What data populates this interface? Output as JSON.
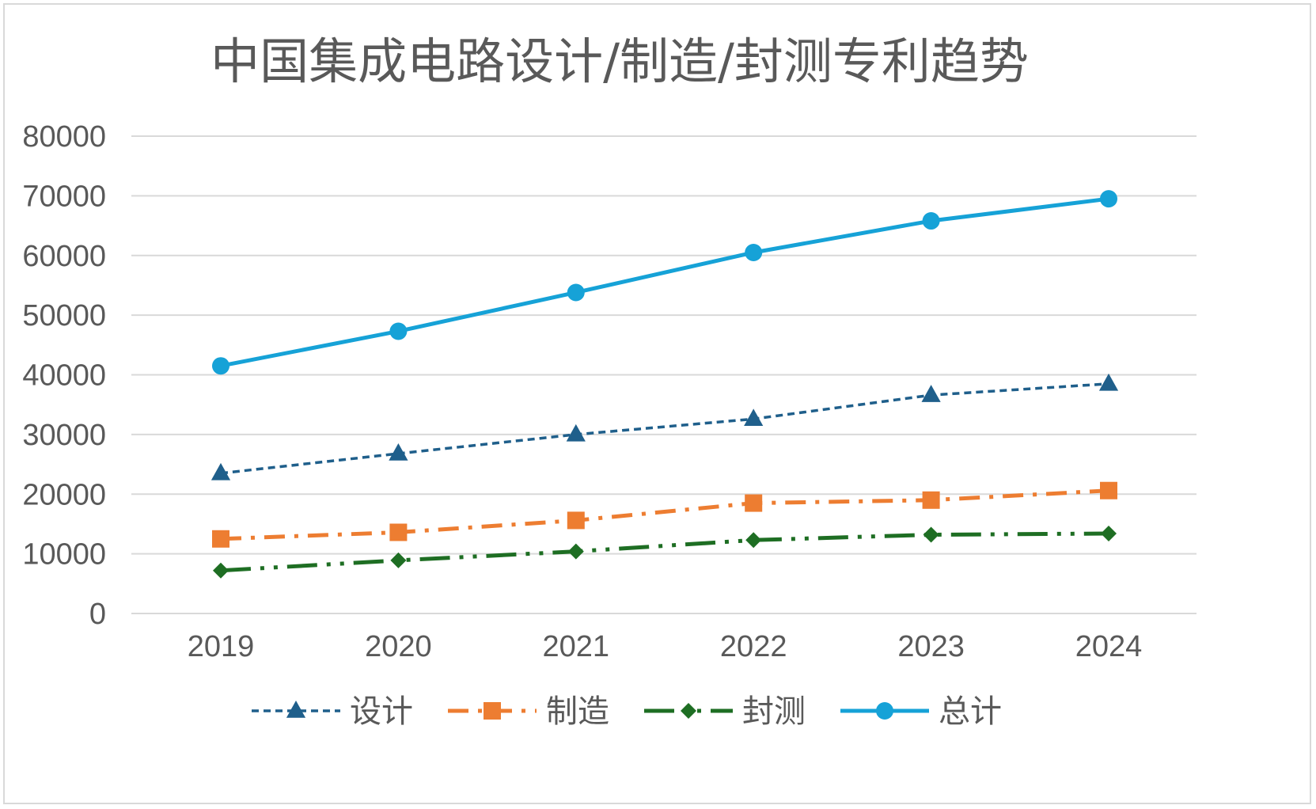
{
  "chart_data": {
    "type": "line",
    "title": "中国集成电路设计/制造/封测专利趋势",
    "xlabel": "",
    "ylabel": "",
    "categories": [
      "2019",
      "2020",
      "2021",
      "2022",
      "2023",
      "2024"
    ],
    "ylim": [
      0,
      80000
    ],
    "yticks": [
      "0",
      "10000",
      "20000",
      "30000",
      "40000",
      "50000",
      "60000",
      "70000",
      "80000"
    ],
    "grid": true,
    "legend_position": "bottom",
    "series": [
      {
        "name": "设计",
        "values": [
          23500,
          26800,
          30000,
          32600,
          36600,
          38500
        ],
        "color": "#1f5f8b",
        "line_style": "dashed",
        "marker": "triangle"
      },
      {
        "name": "制造",
        "values": [
          12500,
          13600,
          15600,
          18500,
          19000,
          20600
        ],
        "color": "#ed7d31",
        "line_style": "dash-dot",
        "marker": "square"
      },
      {
        "name": "封测",
        "values": [
          7200,
          8900,
          10400,
          12300,
          13200,
          13400
        ],
        "color": "#1e6e23",
        "line_style": "long-dash-dot-dot",
        "marker": "diamond"
      },
      {
        "name": "总计",
        "values": [
          41500,
          47300,
          53800,
          60500,
          65800,
          69500
        ],
        "color": "#16a2d7",
        "line_style": "solid",
        "marker": "circle"
      }
    ]
  }
}
